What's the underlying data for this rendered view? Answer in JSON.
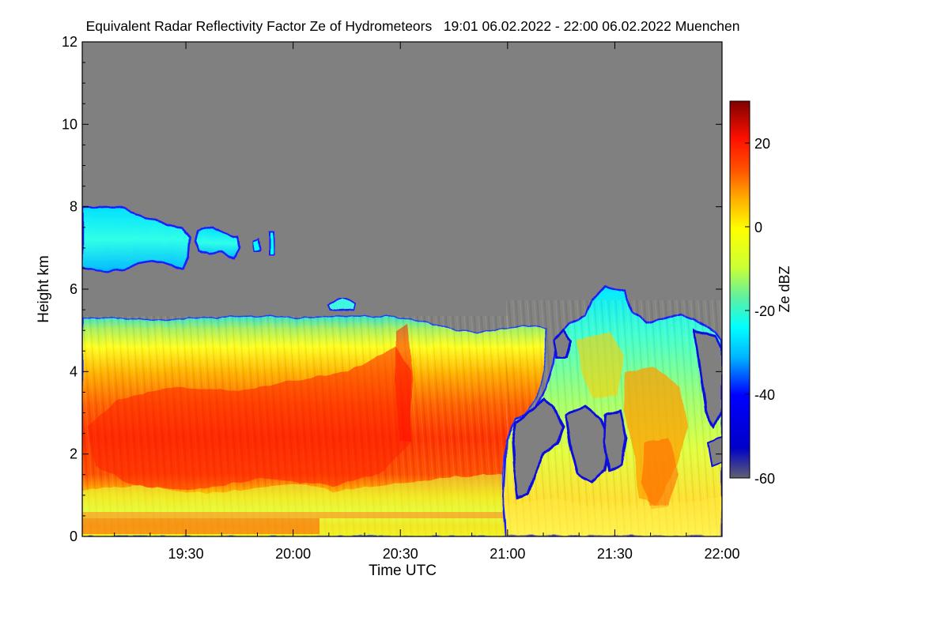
{
  "chart_data": {
    "type": "heatmap",
    "title": "Equivalent Radar Reflectivity Factor Ze of Hydrometeors   19:01 06.02.2022 - 22:00 06.02.2022 Muenchen",
    "xlabel": "Time UTC",
    "ylabel": "Height km",
    "colorbar_label": "Ze dBZ",
    "x_range": [
      "19:01",
      "22:00"
    ],
    "x_range_minutes": [
      0,
      179
    ],
    "x_ticks": [
      {
        "label": "19:30",
        "minutes": 29
      },
      {
        "label": "20:00",
        "minutes": 59
      },
      {
        "label": "20:30",
        "minutes": 89
      },
      {
        "label": "21:00",
        "minutes": 119
      },
      {
        "label": "21:30",
        "minutes": 149
      },
      {
        "label": "22:00",
        "minutes": 179
      }
    ],
    "ylim": [
      0,
      12
    ],
    "y_ticks": [
      "0",
      "2",
      "4",
      "6",
      "8",
      "10",
      "12"
    ],
    "colorbar_range": [
      -60,
      30
    ],
    "colorbar_ticks": [
      "20",
      "0",
      "-20",
      "-40",
      "-60"
    ],
    "colormap": [
      "#606070",
      "#0000cc",
      "#0000ff",
      "#00c8ff",
      "#00ffff",
      "#60f0a0",
      "#ccff33",
      "#ffff00",
      "#ffb000",
      "#ff6000",
      "#ff2000",
      "#cc0000",
      "#800000"
    ],
    "no_signal_color": "#808080",
    "cloud_layers": [
      {
        "name": "upper-cirrus",
        "time_minutes": [
          0,
          54
        ],
        "height_km": [
          6.4,
          8.0
        ],
        "ze_dbz_approx": -25
      },
      {
        "name": "main-precipitation",
        "time_minutes": [
          0,
          134
        ],
        "height_km": [
          0,
          5.3
        ],
        "ze_dbz_approx": [
          5,
          18
        ]
      },
      {
        "name": "broken-convective-cells",
        "time_minutes": [
          134,
          179
        ],
        "height_km": [
          0,
          6.0
        ],
        "ze_dbz_approx": [
          -35,
          10
        ]
      }
    ]
  }
}
